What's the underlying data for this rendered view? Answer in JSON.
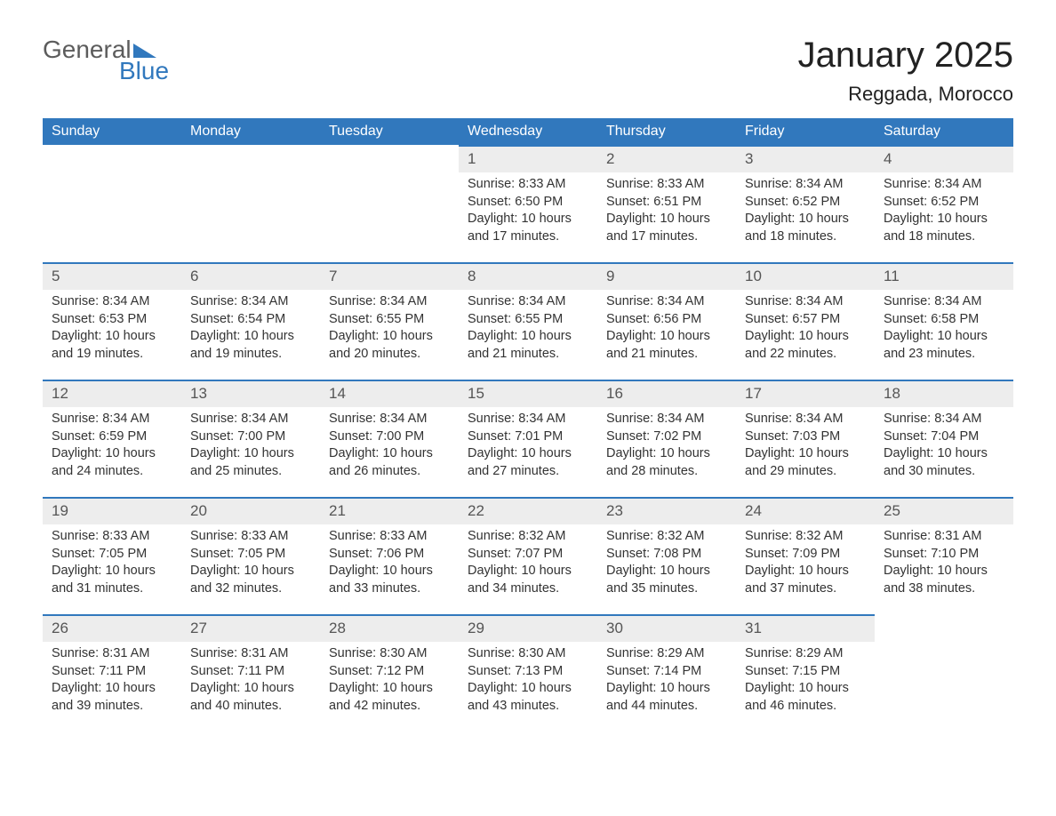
{
  "logo": {
    "text1": "General",
    "text2": "Blue",
    "color_gray": "#5c5c5c",
    "color_blue": "#3178bd"
  },
  "header": {
    "title": "January 2025",
    "subtitle": "Reggada, Morocco"
  },
  "calendar": {
    "type": "table",
    "header_bg": "#3178bd",
    "header_fg": "#ffffff",
    "row_accent": "#3178bd",
    "daynum_bg": "#ededed",
    "body_bg": "#ffffff",
    "text_color": "#333333",
    "columns": [
      "Sunday",
      "Monday",
      "Tuesday",
      "Wednesday",
      "Thursday",
      "Friday",
      "Saturday"
    ],
    "weeks": [
      [
        null,
        null,
        null,
        {
          "d": "1",
          "sr": "8:33 AM",
          "ss": "6:50 PM",
          "dl": "10 hours and 17 minutes."
        },
        {
          "d": "2",
          "sr": "8:33 AM",
          "ss": "6:51 PM",
          "dl": "10 hours and 17 minutes."
        },
        {
          "d": "3",
          "sr": "8:34 AM",
          "ss": "6:52 PM",
          "dl": "10 hours and 18 minutes."
        },
        {
          "d": "4",
          "sr": "8:34 AM",
          "ss": "6:52 PM",
          "dl": "10 hours and 18 minutes."
        }
      ],
      [
        {
          "d": "5",
          "sr": "8:34 AM",
          "ss": "6:53 PM",
          "dl": "10 hours and 19 minutes."
        },
        {
          "d": "6",
          "sr": "8:34 AM",
          "ss": "6:54 PM",
          "dl": "10 hours and 19 minutes."
        },
        {
          "d": "7",
          "sr": "8:34 AM",
          "ss": "6:55 PM",
          "dl": "10 hours and 20 minutes."
        },
        {
          "d": "8",
          "sr": "8:34 AM",
          "ss": "6:55 PM",
          "dl": "10 hours and 21 minutes."
        },
        {
          "d": "9",
          "sr": "8:34 AM",
          "ss": "6:56 PM",
          "dl": "10 hours and 21 minutes."
        },
        {
          "d": "10",
          "sr": "8:34 AM",
          "ss": "6:57 PM",
          "dl": "10 hours and 22 minutes."
        },
        {
          "d": "11",
          "sr": "8:34 AM",
          "ss": "6:58 PM",
          "dl": "10 hours and 23 minutes."
        }
      ],
      [
        {
          "d": "12",
          "sr": "8:34 AM",
          "ss": "6:59 PM",
          "dl": "10 hours and 24 minutes."
        },
        {
          "d": "13",
          "sr": "8:34 AM",
          "ss": "7:00 PM",
          "dl": "10 hours and 25 minutes."
        },
        {
          "d": "14",
          "sr": "8:34 AM",
          "ss": "7:00 PM",
          "dl": "10 hours and 26 minutes."
        },
        {
          "d": "15",
          "sr": "8:34 AM",
          "ss": "7:01 PM",
          "dl": "10 hours and 27 minutes."
        },
        {
          "d": "16",
          "sr": "8:34 AM",
          "ss": "7:02 PM",
          "dl": "10 hours and 28 minutes."
        },
        {
          "d": "17",
          "sr": "8:34 AM",
          "ss": "7:03 PM",
          "dl": "10 hours and 29 minutes."
        },
        {
          "d": "18",
          "sr": "8:34 AM",
          "ss": "7:04 PM",
          "dl": "10 hours and 30 minutes."
        }
      ],
      [
        {
          "d": "19",
          "sr": "8:33 AM",
          "ss": "7:05 PM",
          "dl": "10 hours and 31 minutes."
        },
        {
          "d": "20",
          "sr": "8:33 AM",
          "ss": "7:05 PM",
          "dl": "10 hours and 32 minutes."
        },
        {
          "d": "21",
          "sr": "8:33 AM",
          "ss": "7:06 PM",
          "dl": "10 hours and 33 minutes."
        },
        {
          "d": "22",
          "sr": "8:32 AM",
          "ss": "7:07 PM",
          "dl": "10 hours and 34 minutes."
        },
        {
          "d": "23",
          "sr": "8:32 AM",
          "ss": "7:08 PM",
          "dl": "10 hours and 35 minutes."
        },
        {
          "d": "24",
          "sr": "8:32 AM",
          "ss": "7:09 PM",
          "dl": "10 hours and 37 minutes."
        },
        {
          "d": "25",
          "sr": "8:31 AM",
          "ss": "7:10 PM",
          "dl": "10 hours and 38 minutes."
        }
      ],
      [
        {
          "d": "26",
          "sr": "8:31 AM",
          "ss": "7:11 PM",
          "dl": "10 hours and 39 minutes."
        },
        {
          "d": "27",
          "sr": "8:31 AM",
          "ss": "7:11 PM",
          "dl": "10 hours and 40 minutes."
        },
        {
          "d": "28",
          "sr": "8:30 AM",
          "ss": "7:12 PM",
          "dl": "10 hours and 42 minutes."
        },
        {
          "d": "29",
          "sr": "8:30 AM",
          "ss": "7:13 PM",
          "dl": "10 hours and 43 minutes."
        },
        {
          "d": "30",
          "sr": "8:29 AM",
          "ss": "7:14 PM",
          "dl": "10 hours and 44 minutes."
        },
        {
          "d": "31",
          "sr": "8:29 AM",
          "ss": "7:15 PM",
          "dl": "10 hours and 46 minutes."
        },
        null
      ]
    ],
    "labels": {
      "sunrise": "Sunrise: ",
      "sunset": "Sunset: ",
      "daylight": "Daylight: "
    }
  }
}
